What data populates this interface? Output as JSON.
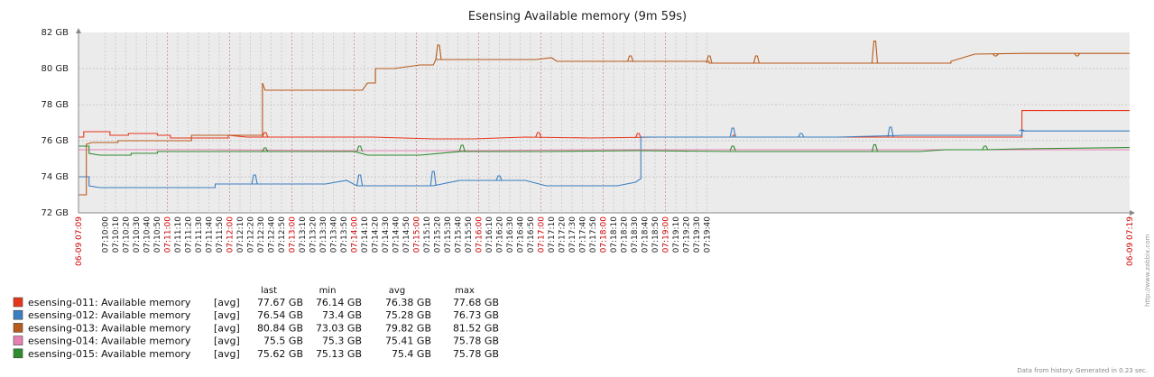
{
  "chart_data": {
    "type": "line",
    "title": "Esensing Available memory (9m 59s)",
    "y_unit": "GB",
    "ylim": [
      72,
      82
    ],
    "y_ticks": [
      "82 GB",
      "80 GB",
      "78 GB",
      "76 GB",
      "74 GB",
      "72 GB"
    ],
    "x_start_label": "06-09 07:09",
    "x_end_label": "06-09 07:19",
    "x_labels": [
      "07:10:00",
      "07:10:10",
      "07:10:20",
      "07:10:30",
      "07:10:40",
      "07:10:50",
      "07:11:00",
      "07:11:10",
      "07:11:20",
      "07:11:30",
      "07:11:40",
      "07:11:50",
      "07:12:00",
      "07:12:10",
      "07:12:20",
      "07:12:30",
      "07:12:40",
      "07:12:50",
      "07:13:00",
      "07:13:10",
      "07:13:20",
      "07:13:30",
      "07:13:40",
      "07:13:50",
      "07:14:00",
      "07:14:10",
      "07:14:20",
      "07:14:30",
      "07:14:40",
      "07:14:50",
      "07:15:00",
      "07:15:10",
      "07:15:20",
      "07:15:30",
      "07:15:40",
      "07:15:50",
      "07:16:00",
      "07:16:10",
      "07:16:20",
      "07:16:30",
      "07:16:40",
      "07:16:50",
      "07:17:00",
      "07:17:10",
      "07:17:20",
      "07:17:30",
      "07:17:40",
      "07:17:50",
      "07:18:00",
      "07:18:10",
      "07:18:20",
      "07:18:30",
      "07:18:40",
      "07:18:50",
      "07:19:00",
      "07:19:10",
      "07:19:20",
      "07:19:30",
      "07:19:40"
    ],
    "x_major_labels": [
      "07:11:00",
      "07:12:00",
      "07:13:00",
      "07:14:00",
      "07:15:00",
      "07:16:00",
      "07:17:00",
      "07:18:00",
      "07:19:00"
    ],
    "grid": true,
    "legend_placement": "bottom-left",
    "legend_headers": [
      "last",
      "min",
      "avg",
      "max"
    ],
    "series": [
      {
        "name": "esensing-011: Available memory",
        "func": "[avg]",
        "last": "77.67 GB",
        "min": "76.14 GB",
        "avg": "76.38 GB",
        "max": "77.68 GB",
        "color": "#e8361b",
        "points": [
          [
            0,
            76.2
          ],
          [
            2,
            76.2
          ],
          [
            2,
            76.5
          ],
          [
            12,
            76.5
          ],
          [
            12,
            76.3
          ],
          [
            19,
            76.3
          ],
          [
            19,
            76.4
          ],
          [
            21,
            76.4
          ],
          [
            21,
            76.4
          ],
          [
            30,
            76.4
          ],
          [
            30,
            76.3
          ],
          [
            35,
            76.3
          ],
          [
            35,
            76.15
          ],
          [
            57,
            76.15
          ],
          [
            57,
            76.3
          ],
          [
            64,
            76.2
          ],
          [
            80,
            76.2
          ],
          [
            94,
            76.2
          ],
          [
            112,
            76.2
          ],
          [
            135,
            76.1
          ],
          [
            150,
            76.1
          ],
          [
            170,
            76.2
          ],
          [
            195,
            76.15
          ],
          [
            220,
            76.2
          ],
          [
            249,
            76.2
          ],
          [
            249,
            76.3
          ],
          [
            250,
            76.3
          ],
          [
            250,
            76.2
          ],
          [
            275,
            76.2
          ],
          [
            289,
            76.2
          ],
          [
            310,
            76.2
          ],
          [
            334,
            76.2
          ],
          [
            359,
            76.2
          ],
          [
            359,
            77.67
          ],
          [
            390,
            77.67
          ],
          [
            400,
            77.67
          ]
        ],
        "spikes": [
          [
            71,
            76.45
          ],
          [
            175,
            76.45
          ],
          [
            213,
            76.4
          ]
        ]
      },
      {
        "name": "esensing-012: Available memory",
        "func": "[avg]",
        "last": "76.54 GB",
        "min": "73.4 GB",
        "avg": "75.28 GB",
        "max": "76.73 GB",
        "color": "#3a7fc0",
        "points": [
          [
            0,
            74.0
          ],
          [
            4,
            74.0
          ],
          [
            4,
            73.5
          ],
          [
            8,
            73.4
          ],
          [
            52,
            73.4
          ],
          [
            52,
            73.6
          ],
          [
            80,
            73.6
          ],
          [
            82,
            73.6
          ],
          [
            94,
            73.6
          ],
          [
            102,
            73.8
          ],
          [
            106,
            73.5
          ],
          [
            126,
            73.5
          ],
          [
            135,
            73.5
          ],
          [
            145,
            73.8
          ],
          [
            152,
            73.8
          ],
          [
            170,
            73.8
          ],
          [
            178,
            73.5
          ],
          [
            205,
            73.5
          ],
          [
            212,
            73.7
          ],
          [
            214,
            73.9
          ],
          [
            214,
            76.2
          ],
          [
            250,
            76.2
          ],
          [
            285,
            76.2
          ],
          [
            289,
            76.2
          ],
          [
            315,
            76.3
          ],
          [
            359,
            76.3
          ],
          [
            359,
            76.54
          ],
          [
            400,
            76.54
          ]
        ],
        "spikes": [
          [
            67,
            74.1
          ],
          [
            107,
            74.1
          ],
          [
            135,
            74.3
          ],
          [
            160,
            74.05
          ],
          [
            249,
            76.7
          ],
          [
            275,
            76.4
          ],
          [
            309,
            76.75
          ],
          [
            359,
            76.6
          ]
        ]
      },
      {
        "name": "esensing-013: Available memory",
        "func": "[avg]",
        "last": "80.84 GB",
        "min": "73.03 GB",
        "avg": "79.82 GB",
        "max": "81.52 GB",
        "color": "#b85a1a",
        "points": [
          [
            0,
            73.0
          ],
          [
            3,
            73.0
          ],
          [
            3,
            75.8
          ],
          [
            5,
            75.9
          ],
          [
            15,
            75.9
          ],
          [
            15,
            76.0
          ],
          [
            43,
            76.0
          ],
          [
            43,
            76.3
          ],
          [
            70,
            76.3
          ],
          [
            70,
            79.2
          ],
          [
            71,
            78.8
          ],
          [
            83,
            78.8
          ],
          [
            108,
            78.8
          ],
          [
            110,
            79.2
          ],
          [
            113,
            79.2
          ],
          [
            113,
            80.0
          ],
          [
            117,
            80.0
          ],
          [
            120,
            80.0
          ],
          [
            130,
            80.2
          ],
          [
            135,
            80.2
          ],
          [
            136,
            80.5
          ],
          [
            150,
            80.5
          ],
          [
            174,
            80.5
          ],
          [
            180,
            80.6
          ],
          [
            182,
            80.4
          ],
          [
            240,
            80.4
          ],
          [
            240,
            80.3
          ],
          [
            300,
            80.3
          ],
          [
            312,
            80.3
          ],
          [
            322,
            80.3
          ],
          [
            332,
            80.3
          ],
          [
            332,
            80.4
          ],
          [
            341,
            80.8
          ],
          [
            359,
            80.84
          ],
          [
            400,
            80.84
          ]
        ],
        "spikes": [
          [
            137,
            81.3
          ],
          [
            210,
            80.7
          ],
          [
            240,
            80.7
          ],
          [
            258,
            80.7
          ],
          [
            303,
            81.52
          ],
          [
            349,
            80.7
          ],
          [
            380,
            80.7
          ]
        ]
      },
      {
        "name": "esensing-014: Available memory",
        "func": "[avg]",
        "last": "75.5 GB",
        "min": "75.3 GB",
        "avg": "75.41 GB",
        "max": "75.78 GB",
        "color": "#e680b0",
        "points": [
          [
            0,
            75.5
          ],
          [
            50,
            75.5
          ],
          [
            100,
            75.45
          ],
          [
            150,
            75.45
          ],
          [
            200,
            75.5
          ],
          [
            250,
            75.5
          ],
          [
            300,
            75.5
          ],
          [
            359,
            75.5
          ],
          [
            400,
            75.5
          ]
        ],
        "spikes": []
      },
      {
        "name": "esensing-015: Available memory",
        "func": "[avg]",
        "last": "75.62 GB",
        "min": "75.13 GB",
        "avg": "75.4 GB",
        "max": "75.78 GB",
        "color": "#2e8b2e",
        "points": [
          [
            0,
            75.7
          ],
          [
            4,
            75.7
          ],
          [
            4,
            75.3
          ],
          [
            8,
            75.2
          ],
          [
            20,
            75.2
          ],
          [
            20,
            75.3
          ],
          [
            30,
            75.3
          ],
          [
            30,
            75.4
          ],
          [
            42,
            75.4
          ],
          [
            60,
            75.4
          ],
          [
            70,
            75.4
          ],
          [
            90,
            75.4
          ],
          [
            105,
            75.4
          ],
          [
            110,
            75.2
          ],
          [
            130,
            75.2
          ],
          [
            145,
            75.4
          ],
          [
            176,
            75.4
          ],
          [
            213,
            75.45
          ],
          [
            250,
            75.4
          ],
          [
            280,
            75.4
          ],
          [
            310,
            75.4
          ],
          [
            320,
            75.4
          ],
          [
            330,
            75.5
          ],
          [
            345,
            75.5
          ],
          [
            359,
            75.55
          ],
          [
            400,
            75.62
          ]
        ],
        "spikes": [
          [
            71,
            75.6
          ],
          [
            107,
            75.7
          ],
          [
            146,
            75.75
          ],
          [
            249,
            75.7
          ],
          [
            303,
            75.78
          ],
          [
            345,
            75.7
          ]
        ]
      }
    ]
  },
  "footnote": "Data from history. Generated in 0.23 sec.",
  "side_text": "http://www.zabbix.com"
}
